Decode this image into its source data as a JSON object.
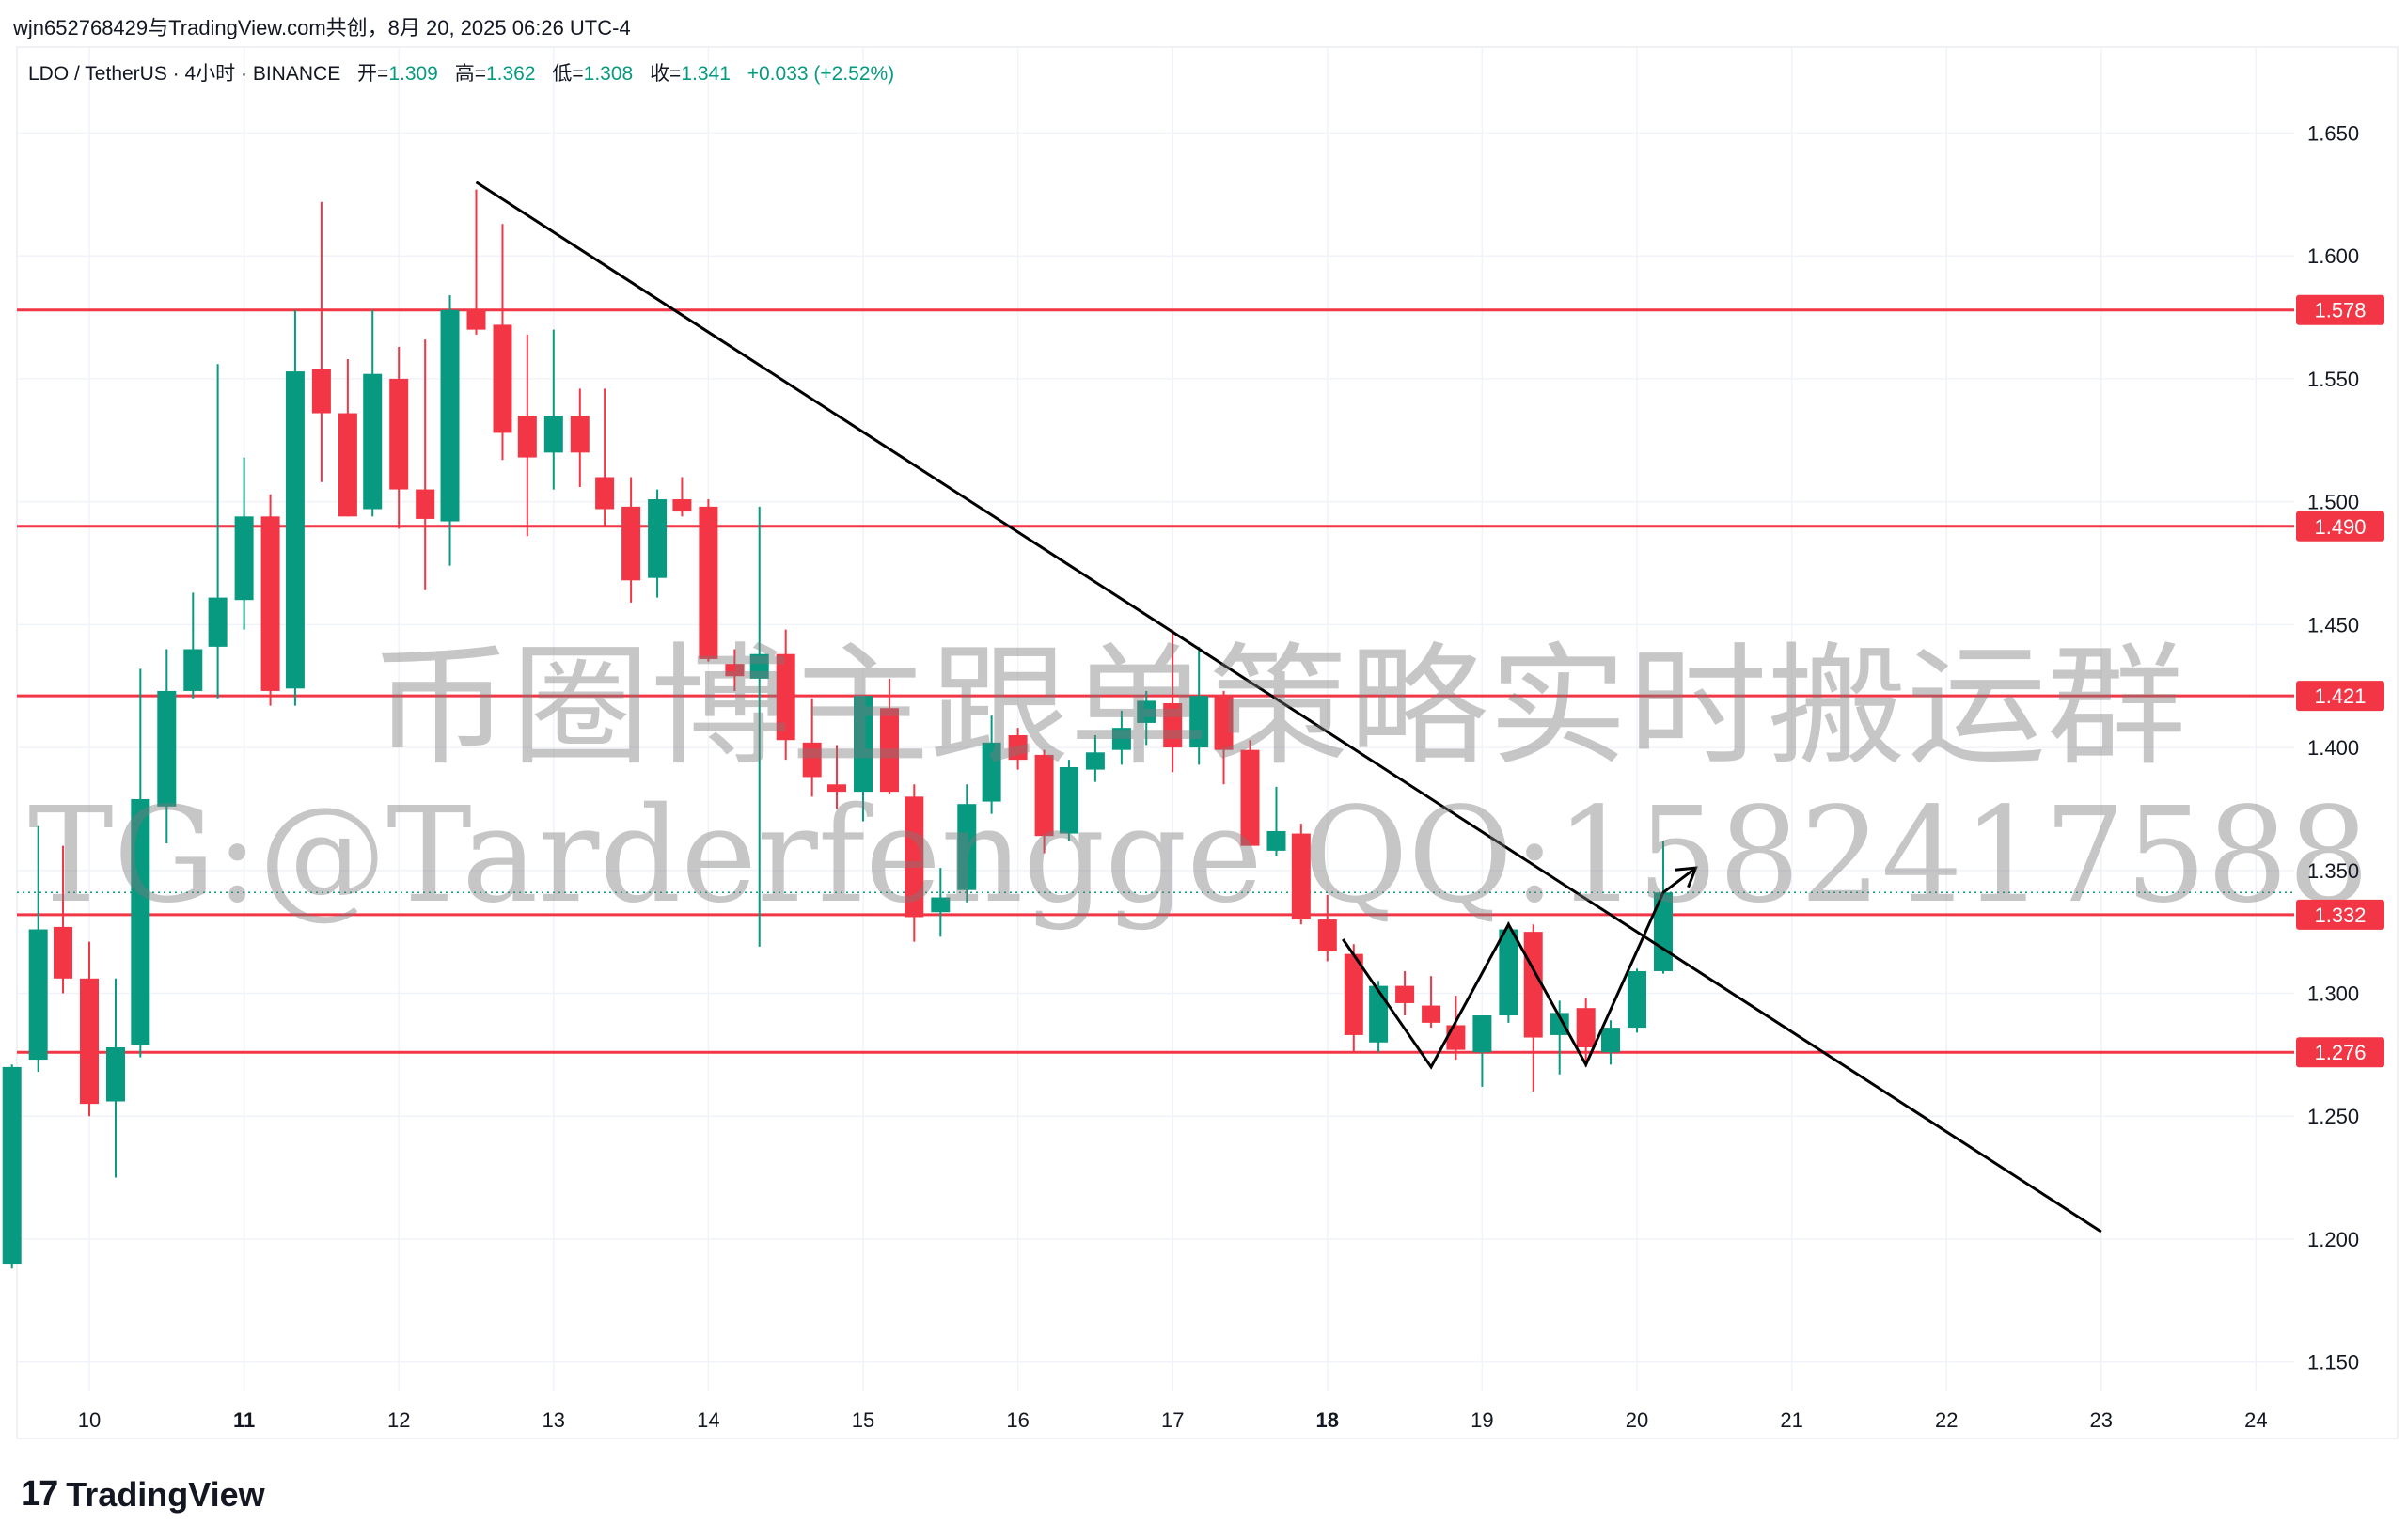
{
  "header": {
    "attribution": "wjn652768429与TradingView.com共创，8月 20, 2025 06:26 UTC-4"
  },
  "legend": {
    "symbol": "LDO / TetherUS · 4小时 · BINANCE",
    "open_label": "开=",
    "open": "1.309",
    "high_label": "高=",
    "high": "1.362",
    "low_label": "低=",
    "low": "1.308",
    "close_label": "收=",
    "close": "1.341",
    "change": "+0.033 (+2.52%)"
  },
  "footer": {
    "brand": "TradingView",
    "brand_mark": "17"
  },
  "watermark": {
    "line1": "币圈博主跟单策略实时搬运群",
    "line2": "TG:@Tarderfengge QQ:1582417588"
  },
  "colors": {
    "up": "#089981",
    "down": "#F23645",
    "level": "#F23645",
    "trendline": "#000000",
    "grid": "#F0F3FA",
    "axis_text": "#131722"
  },
  "chart_data": {
    "type": "candlestick",
    "timeframe": "4小时",
    "y_ticks": [
      "1.650",
      "1.600",
      "1.550",
      "1.500",
      "1.450",
      "1.400",
      "1.350",
      "1.300",
      "1.250",
      "1.200",
      "1.150"
    ],
    "ylim": [
      1.138,
      1.685
    ],
    "x_ticks": [
      {
        "day": 10,
        "label": "10",
        "bold": false
      },
      {
        "day": 11,
        "label": "11",
        "bold": true
      },
      {
        "day": 12,
        "label": "12",
        "bold": false
      },
      {
        "day": 13,
        "label": "13",
        "bold": false
      },
      {
        "day": 14,
        "label": "14",
        "bold": false
      },
      {
        "day": 15,
        "label": "15",
        "bold": false
      },
      {
        "day": 16,
        "label": "16",
        "bold": false
      },
      {
        "day": 17,
        "label": "17",
        "bold": false
      },
      {
        "day": 18,
        "label": "18",
        "bold": true
      },
      {
        "day": 19,
        "label": "19",
        "bold": false
      },
      {
        "day": 20,
        "label": "20",
        "bold": false
      },
      {
        "day": 21,
        "label": "21",
        "bold": false
      },
      {
        "day": 22,
        "label": "22",
        "bold": false
      },
      {
        "day": 23,
        "label": "23",
        "bold": false
      },
      {
        "day": 24,
        "label": "24",
        "bold": false
      }
    ],
    "horizontal_levels": [
      {
        "label": "1.578",
        "value": 1.578
      },
      {
        "label": "1.490",
        "value": 1.49
      },
      {
        "label": "1.421",
        "value": 1.421
      },
      {
        "label": "1.332",
        "value": 1.332
      },
      {
        "label": "1.276",
        "value": 1.276
      }
    ],
    "last_price": 1.341,
    "trendline": {
      "from": {
        "day": 12.5,
        "price": 1.63
      },
      "to": {
        "day": 23.0,
        "price": 1.203
      }
    },
    "zigzag": [
      {
        "day": 18.1,
        "price": 1.322
      },
      {
        "day": 18.67,
        "price": 1.27
      },
      {
        "day": 19.17,
        "price": 1.328
      },
      {
        "day": 19.67,
        "price": 1.271
      },
      {
        "day": 20.17,
        "price": 1.341
      },
      {
        "day": 20.38,
        "price": 1.351
      }
    ],
    "candles": [
      {
        "day": 9.5,
        "o": 1.19,
        "h": 1.271,
        "l": 1.188,
        "c": 1.27
      },
      {
        "day": 9.67,
        "o": 1.273,
        "h": 1.368,
        "l": 1.268,
        "c": 1.326
      },
      {
        "day": 9.83,
        "o": 1.327,
        "h": 1.36,
        "l": 1.3,
        "c": 1.306
      },
      {
        "day": 10.0,
        "o": 1.306,
        "h": 1.321,
        "l": 1.25,
        "c": 1.255
      },
      {
        "day": 10.17,
        "o": 1.256,
        "h": 1.306,
        "l": 1.225,
        "c": 1.278
      },
      {
        "day": 10.33,
        "o": 1.279,
        "h": 1.432,
        "l": 1.274,
        "c": 1.379
      },
      {
        "day": 10.5,
        "o": 1.376,
        "h": 1.44,
        "l": 1.361,
        "c": 1.423
      },
      {
        "day": 10.67,
        "o": 1.423,
        "h": 1.463,
        "l": 1.42,
        "c": 1.44
      },
      {
        "day": 10.83,
        "o": 1.441,
        "h": 1.556,
        "l": 1.42,
        "c": 1.461
      },
      {
        "day": 11.0,
        "o": 1.46,
        "h": 1.518,
        "l": 1.448,
        "c": 1.494
      },
      {
        "day": 11.17,
        "o": 1.494,
        "h": 1.503,
        "l": 1.417,
        "c": 1.423
      },
      {
        "day": 11.33,
        "o": 1.424,
        "h": 1.578,
        "l": 1.417,
        "c": 1.553
      },
      {
        "day": 11.5,
        "o": 1.554,
        "h": 1.622,
        "l": 1.508,
        "c": 1.536
      },
      {
        "day": 11.67,
        "o": 1.536,
        "h": 1.558,
        "l": 1.494,
        "c": 1.494
      },
      {
        "day": 11.83,
        "o": 1.497,
        "h": 1.578,
        "l": 1.494,
        "c": 1.552
      },
      {
        "day": 12.0,
        "o": 1.55,
        "h": 1.563,
        "l": 1.489,
        "c": 1.505
      },
      {
        "day": 12.17,
        "o": 1.505,
        "h": 1.566,
        "l": 1.464,
        "c": 1.493
      },
      {
        "day": 12.33,
        "o": 1.492,
        "h": 1.584,
        "l": 1.474,
        "c": 1.578
      },
      {
        "day": 12.5,
        "o": 1.578,
        "h": 1.627,
        "l": 1.568,
        "c": 1.57
      },
      {
        "day": 12.67,
        "o": 1.572,
        "h": 1.613,
        "l": 1.517,
        "c": 1.528
      },
      {
        "day": 12.83,
        "o": 1.535,
        "h": 1.568,
        "l": 1.486,
        "c": 1.518
      },
      {
        "day": 13.0,
        "o": 1.52,
        "h": 1.57,
        "l": 1.505,
        "c": 1.535
      },
      {
        "day": 13.17,
        "o": 1.535,
        "h": 1.546,
        "l": 1.506,
        "c": 1.52
      },
      {
        "day": 13.33,
        "o": 1.51,
        "h": 1.546,
        "l": 1.49,
        "c": 1.497
      },
      {
        "day": 13.5,
        "o": 1.498,
        "h": 1.51,
        "l": 1.459,
        "c": 1.468
      },
      {
        "day": 13.67,
        "o": 1.469,
        "h": 1.505,
        "l": 1.461,
        "c": 1.501
      },
      {
        "day": 13.83,
        "o": 1.501,
        "h": 1.51,
        "l": 1.494,
        "c": 1.496
      },
      {
        "day": 14.0,
        "o": 1.498,
        "h": 1.501,
        "l": 1.435,
        "c": 1.436
      },
      {
        "day": 14.17,
        "o": 1.434,
        "h": 1.44,
        "l": 1.423,
        "c": 1.429
      },
      {
        "day": 14.33,
        "o": 1.428,
        "h": 1.498,
        "l": 1.319,
        "c": 1.438
      },
      {
        "day": 14.5,
        "o": 1.438,
        "h": 1.448,
        "l": 1.395,
        "c": 1.403
      },
      {
        "day": 14.67,
        "o": 1.402,
        "h": 1.42,
        "l": 1.38,
        "c": 1.388
      },
      {
        "day": 14.83,
        "o": 1.385,
        "h": 1.401,
        "l": 1.375,
        "c": 1.382
      },
      {
        "day": 15.0,
        "o": 1.382,
        "h": 1.42,
        "l": 1.37,
        "c": 1.421
      },
      {
        "day": 15.17,
        "o": 1.416,
        "h": 1.428,
        "l": 1.381,
        "c": 1.382
      },
      {
        "day": 15.33,
        "o": 1.38,
        "h": 1.385,
        "l": 1.321,
        "c": 1.331
      },
      {
        "day": 15.5,
        "o": 1.333,
        "h": 1.351,
        "l": 1.323,
        "c": 1.339
      },
      {
        "day": 15.67,
        "o": 1.342,
        "h": 1.385,
        "l": 1.337,
        "c": 1.377
      },
      {
        "day": 15.83,
        "o": 1.378,
        "h": 1.413,
        "l": 1.373,
        "c": 1.402
      },
      {
        "day": 16.0,
        "o": 1.405,
        "h": 1.408,
        "l": 1.391,
        "c": 1.395
      },
      {
        "day": 16.17,
        "o": 1.397,
        "h": 1.399,
        "l": 1.357,
        "c": 1.364
      },
      {
        "day": 16.33,
        "o": 1.365,
        "h": 1.395,
        "l": 1.362,
        "c": 1.392
      },
      {
        "day": 16.5,
        "o": 1.391,
        "h": 1.405,
        "l": 1.386,
        "c": 1.398
      },
      {
        "day": 16.67,
        "o": 1.399,
        "h": 1.415,
        "l": 1.393,
        "c": 1.408
      },
      {
        "day": 16.83,
        "o": 1.41,
        "h": 1.423,
        "l": 1.401,
        "c": 1.419
      },
      {
        "day": 17.0,
        "o": 1.418,
        "h": 1.448,
        "l": 1.39,
        "c": 1.4
      },
      {
        "day": 17.17,
        "o": 1.4,
        "h": 1.441,
        "l": 1.393,
        "c": 1.421
      },
      {
        "day": 17.33,
        "o": 1.421,
        "h": 1.423,
        "l": 1.385,
        "c": 1.399
      },
      {
        "day": 17.5,
        "o": 1.399,
        "h": 1.403,
        "l": 1.36,
        "c": 1.36
      },
      {
        "day": 17.67,
        "o": 1.358,
        "h": 1.384,
        "l": 1.356,
        "c": 1.366
      },
      {
        "day": 17.83,
        "o": 1.365,
        "h": 1.369,
        "l": 1.328,
        "c": 1.33
      },
      {
        "day": 18.0,
        "o": 1.33,
        "h": 1.34,
        "l": 1.313,
        "c": 1.317
      },
      {
        "day": 18.17,
        "o": 1.316,
        "h": 1.32,
        "l": 1.276,
        "c": 1.283
      },
      {
        "day": 18.33,
        "o": 1.28,
        "h": 1.305,
        "l": 1.276,
        "c": 1.303
      },
      {
        "day": 18.5,
        "o": 1.303,
        "h": 1.309,
        "l": 1.291,
        "c": 1.296
      },
      {
        "day": 18.67,
        "o": 1.295,
        "h": 1.307,
        "l": 1.286,
        "c": 1.288
      },
      {
        "day": 18.83,
        "o": 1.287,
        "h": 1.299,
        "l": 1.273,
        "c": 1.277
      },
      {
        "day": 19.0,
        "o": 1.276,
        "h": 1.291,
        "l": 1.262,
        "c": 1.291
      },
      {
        "day": 19.17,
        "o": 1.291,
        "h": 1.329,
        "l": 1.288,
        "c": 1.326
      },
      {
        "day": 19.33,
        "o": 1.325,
        "h": 1.328,
        "l": 1.26,
        "c": 1.282
      },
      {
        "day": 19.5,
        "o": 1.283,
        "h": 1.297,
        "l": 1.267,
        "c": 1.292
      },
      {
        "day": 19.67,
        "o": 1.294,
        "h": 1.298,
        "l": 1.27,
        "c": 1.278
      },
      {
        "day": 19.83,
        "o": 1.276,
        "h": 1.289,
        "l": 1.271,
        "c": 1.286
      },
      {
        "day": 20.0,
        "o": 1.286,
        "h": 1.31,
        "l": 1.284,
        "c": 1.309
      },
      {
        "day": 20.17,
        "o": 1.309,
        "h": 1.362,
        "l": 1.308,
        "c": 1.341
      }
    ]
  }
}
